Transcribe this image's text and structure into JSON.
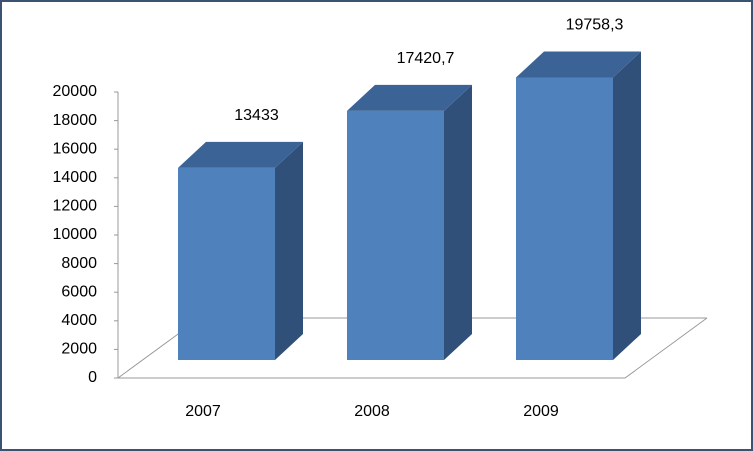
{
  "chart_data": {
    "type": "bar3d",
    "categories": [
      "2007",
      "2008",
      "2009"
    ],
    "values": [
      13433,
      17420.7,
      19758.3
    ],
    "value_labels": [
      "13433",
      "17420,7",
      "19758,3"
    ],
    "color": "#4f81bd",
    "ylim": [
      0,
      20000
    ],
    "yticks": [
      0,
      2000,
      4000,
      6000,
      8000,
      10000,
      12000,
      14000,
      16000,
      18000,
      20000
    ]
  }
}
